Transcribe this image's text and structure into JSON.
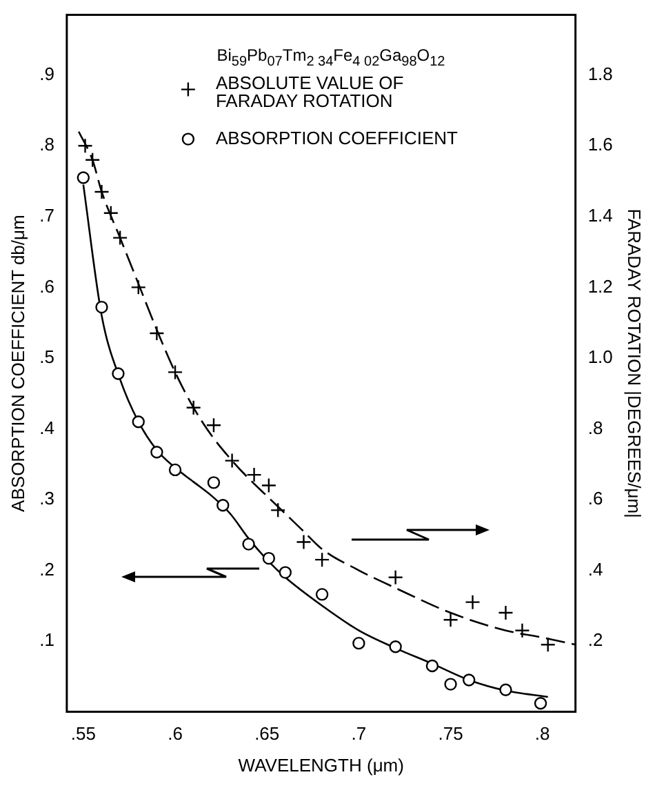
{
  "chart_data": {
    "type": "scatter",
    "title": "Bi$_{59}$Pb$_{07}$Tm$_{2 34}$Fe$_{4 02}$Ga$_{98}$O$_{12}$",
    "xlabel": "WAVELENGTH (μm)",
    "ylabel": "ABSORPTION COEFFICIENT db/μm",
    "y2label": "FARADAY ROTATION |DEGREES/μm|",
    "xlim": [
      0.541,
      0.818
    ],
    "xticks": [
      {
        "value": 0.55,
        "label": ".55"
      },
      {
        "value": 0.6,
        "label": ".6"
      },
      {
        "value": 0.65,
        "label": ".65"
      },
      {
        "value": 0.7,
        "label": ".7"
      },
      {
        "value": 0.75,
        "label": ".75"
      },
      {
        "value": 0.8,
        "label": ".8"
      }
    ],
    "ylim": [
      0,
      0.985
    ],
    "yticks": [
      {
        "value": 0.1,
        "label": ".1"
      },
      {
        "value": 0.2,
        "label": ".2"
      },
      {
        "value": 0.3,
        "label": ".3"
      },
      {
        "value": 0.4,
        "label": ".4"
      },
      {
        "value": 0.5,
        "label": ".5"
      },
      {
        "value": 0.6,
        "label": ".6"
      },
      {
        "value": 0.7,
        "label": ".7"
      },
      {
        "value": 0.8,
        "label": ".8"
      },
      {
        "value": 0.9,
        "label": ".9"
      }
    ],
    "y2lim": [
      0,
      1.97
    ],
    "y2ticks": [
      {
        "value": 0.2,
        "label": ".2"
      },
      {
        "value": 0.4,
        "label": ".4"
      },
      {
        "value": 0.6,
        "label": ".6"
      },
      {
        "value": 0.8,
        "label": ".8"
      },
      {
        "value": 1,
        "label": "1.0"
      },
      {
        "value": 1.2,
        "label": "1.2"
      },
      {
        "value": 1.4,
        "label": "1.4"
      },
      {
        "value": 1.6,
        "label": "1.6"
      },
      {
        "value": 1.8,
        "label": "1.8"
      }
    ],
    "grid": false,
    "legend": "top",
    "series": [
      {
        "name": "ABSOLUTE VALUE OF FARADAY ROTATION",
        "type": "scatter",
        "marker": "cross",
        "axis": "y2",
        "color": "#000000",
        "x": [
          0.551,
          0.555,
          0.56,
          0.565,
          0.57,
          0.58,
          0.59,
          0.6,
          0.61,
          0.621,
          0.631,
          0.643,
          0.651,
          0.656,
          0.67,
          0.68,
          0.72,
          0.75,
          0.762,
          0.78,
          0.789,
          0.803
        ],
        "values": [
          1.6,
          1.56,
          1.47,
          1.41,
          1.34,
          1.2,
          1.07,
          0.96,
          0.86,
          0.81,
          0.71,
          0.67,
          0.64,
          0.57,
          0.48,
          0.43,
          0.38,
          0.26,
          0.31,
          0.28,
          0.23,
          0.19
        ]
      },
      {
        "name": "ABSORPTION COEFFICIENT",
        "type": "scatter",
        "marker": "circle",
        "color": "#000000",
        "x": [
          0.55,
          0.56,
          0.569,
          0.58,
          0.59,
          0.6,
          0.621,
          0.626,
          0.64,
          0.651,
          0.66,
          0.68,
          0.7,
          0.72,
          0.74,
          0.75,
          0.76,
          0.78,
          0.799
        ],
        "values": [
          0.755,
          0.572,
          0.478,
          0.41,
          0.367,
          0.342,
          0.324,
          0.292,
          0.237,
          0.217,
          0.197,
          0.166,
          0.097,
          0.092,
          0.065,
          0.039,
          0.045,
          0.031,
          0.012
        ]
      },
      {
        "type": "line",
        "marker": "none",
        "line_style": "dashed",
        "axis": "y2",
        "color": "#000000",
        "x": [
          0.5475,
          0.555,
          0.56,
          0.57,
          0.58,
          0.59,
          0.6,
          0.61,
          0.62,
          0.631,
          0.64,
          0.65,
          0.66,
          0.67,
          0.68,
          0.7,
          0.72,
          0.75,
          0.78,
          0.8,
          0.818
        ],
        "values": [
          1.64,
          1.56,
          1.47,
          1.34,
          1.21,
          1.08,
          0.96,
          0.86,
          0.78,
          0.71,
          0.66,
          0.61,
          0.56,
          0.51,
          0.46,
          0.4,
          0.35,
          0.28,
          0.23,
          0.21,
          0.19
        ]
      },
      {
        "type": "line",
        "marker": "none",
        "line_style": "solid",
        "color": "#000000",
        "x": [
          0.55,
          0.56,
          0.57,
          0.58,
          0.59,
          0.6,
          0.61,
          0.62,
          0.63,
          0.64,
          0.65,
          0.66,
          0.68,
          0.7,
          0.72,
          0.74,
          0.76,
          0.78,
          0.803
        ],
        "values": [
          0.745,
          0.56,
          0.47,
          0.41,
          0.37,
          0.345,
          0.325,
          0.305,
          0.28,
          0.245,
          0.215,
          0.19,
          0.15,
          0.115,
          0.09,
          0.068,
          0.045,
          0.03,
          0.021
        ]
      }
    ]
  }
}
